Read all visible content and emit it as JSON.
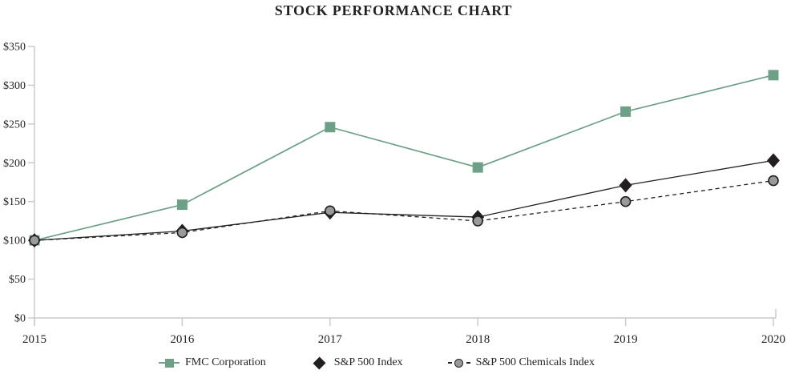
{
  "title": "STOCK PERFORMANCE CHART",
  "chart_data": {
    "type": "line",
    "title": "STOCK PERFORMANCE CHART",
    "categories": [
      "2015",
      "2016",
      "2017",
      "2018",
      "2019",
      "2020"
    ],
    "series": [
      {
        "name": "FMC Corporation",
        "values": [
          100,
          146,
          246,
          194,
          266,
          313
        ],
        "color": "#6da087",
        "marker": "square",
        "marker_fill": "#6da087",
        "line_style": "solid"
      },
      {
        "name": "S&P 500 Index",
        "values": [
          100,
          112,
          136,
          130,
          171,
          203
        ],
        "color": "#231f20",
        "marker": "diamond",
        "marker_fill": "#231f20",
        "line_style": "solid"
      },
      {
        "name": "S&P 500 Chemicals Index",
        "values": [
          100,
          110,
          138,
          125,
          150,
          177
        ],
        "color": "#231f20",
        "marker": "circle",
        "marker_fill": "#9a9a9a",
        "line_style": "dashed"
      }
    ],
    "xlabel": "",
    "ylabel": "",
    "ylim": [
      0,
      350
    ],
    "ytick_step": 50,
    "y_tick_labels": [
      "$0",
      "$50",
      "$100",
      "$150",
      "$200",
      "$250",
      "$300",
      "$350"
    ],
    "grid": false,
    "legend_position": "bottom",
    "axis_color": "#c8c8c8",
    "text_color": "#231f20"
  }
}
